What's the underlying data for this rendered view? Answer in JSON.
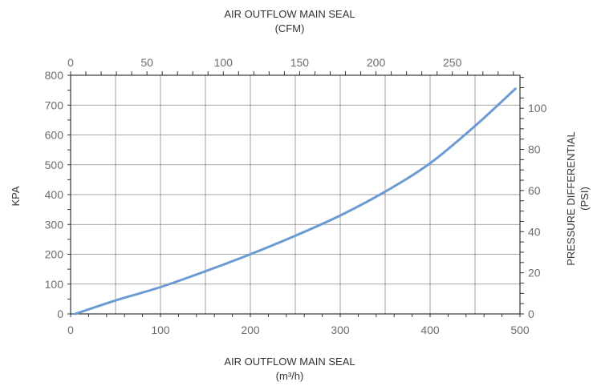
{
  "chart_data": {
    "type": "line",
    "x_bottom": {
      "label_line1": "AIR OUTFLOW MAIN SEAL",
      "label_line2": "(m³/h)",
      "min": 0,
      "max": 500,
      "ticks": [
        0,
        100,
        200,
        300,
        400,
        500
      ]
    },
    "x_top": {
      "label_line1": "AIR OUTFLOW MAIN SEAL",
      "label_line2": "(CFM)",
      "min": 0,
      "max": 294.3,
      "ticks": [
        0,
        50,
        100,
        150,
        200,
        250
      ]
    },
    "y_left": {
      "label": "KPA",
      "min": 0,
      "max": 800,
      "ticks": [
        0,
        100,
        200,
        300,
        400,
        500,
        600,
        700,
        800
      ]
    },
    "y_right": {
      "label_line1": "PRESSURE DIFFERENTIAL",
      "label_line2": "(PSI)",
      "min": 0,
      "max": 116.03,
      "ticks": [
        0,
        20,
        40,
        60,
        80,
        100
      ]
    },
    "grid": true,
    "line_color": "#6b9bd2",
    "series": [
      {
        "x": [
          5,
          50,
          100,
          150,
          200,
          250,
          300,
          350,
          400,
          450,
          495
        ],
        "y": [
          0,
          45,
          90,
          143,
          200,
          262,
          330,
          410,
          505,
          630,
          755
        ]
      }
    ]
  }
}
